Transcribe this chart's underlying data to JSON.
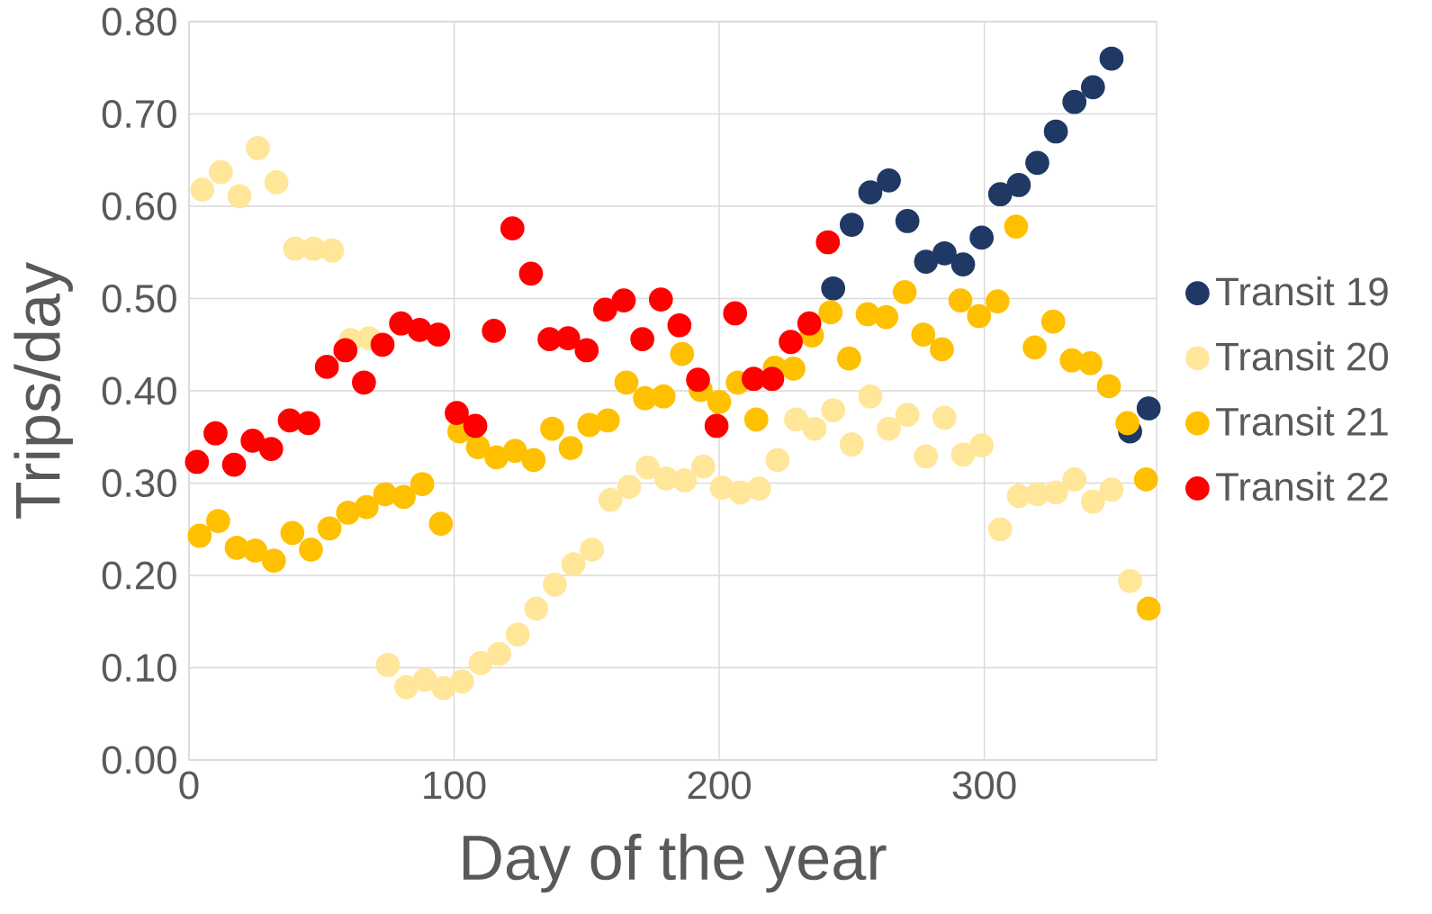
{
  "chart_data": {
    "type": "scatter",
    "xlabel": "Day of the year",
    "ylabel": "Trips/day",
    "xlim": [
      0,
      365
    ],
    "xticks": [
      0,
      100,
      200,
      300
    ],
    "ylim": [
      0,
      0.8
    ],
    "yticks": [
      {
        "value": 0,
        "label": "0.00"
      },
      {
        "value": 0.1,
        "label": "0.10"
      },
      {
        "value": 0.2,
        "label": "0.20"
      },
      {
        "value": 0.3,
        "label": "0.30"
      },
      {
        "value": 0.4,
        "label": "0.40"
      },
      {
        "value": 0.5,
        "label": "0.50"
      },
      {
        "value": 0.6,
        "label": "0.60"
      },
      {
        "value": 0.7,
        "label": "0.70"
      },
      {
        "value": 0.8,
        "label": "0.80"
      }
    ],
    "grid": true,
    "legend": "right",
    "marker": "circle",
    "series": [
      {
        "name": "Transit 19",
        "color": "#203864",
        "x": [
          243,
          250,
          257,
          264,
          271,
          278,
          285,
          292,
          299,
          306,
          313,
          320,
          327,
          334,
          341,
          348,
          355,
          362
        ],
        "values": [
          0.511,
          0.58,
          0.615,
          0.628,
          0.584,
          0.54,
          0.549,
          0.537,
          0.566,
          0.613,
          0.623,
          0.647,
          0.681,
          0.713,
          0.729,
          0.76,
          0.356,
          0.381
        ]
      },
      {
        "name": "Transit 20",
        "color": "#ffe699",
        "x": [
          5,
          12,
          19,
          26,
          33,
          40,
          47,
          54,
          61,
          68,
          75,
          82,
          89,
          96,
          103,
          110,
          117,
          124,
          131,
          138,
          145,
          152,
          159,
          166,
          173,
          180,
          187,
          194,
          201,
          208,
          215,
          222,
          229,
          236,
          243,
          250,
          257,
          264,
          271,
          278,
          285,
          292,
          299,
          306,
          313,
          320,
          327,
          334,
          341,
          348,
          355
        ],
        "values": [
          0.618,
          0.637,
          0.611,
          0.663,
          0.626,
          0.554,
          0.554,
          0.552,
          0.455,
          0.457,
          0.103,
          0.079,
          0.087,
          0.078,
          0.085,
          0.105,
          0.115,
          0.136,
          0.164,
          0.19,
          0.212,
          0.228,
          0.282,
          0.296,
          0.317,
          0.305,
          0.303,
          0.318,
          0.295,
          0.29,
          0.294,
          0.325,
          0.369,
          0.359,
          0.379,
          0.342,
          0.394,
          0.359,
          0.374,
          0.329,
          0.371,
          0.331,
          0.341,
          0.25,
          0.286,
          0.288,
          0.29,
          0.304,
          0.28,
          0.293,
          0.194
        ]
      },
      {
        "name": "Transit 21",
        "color": "#ffc000",
        "x": [
          4,
          11,
          18,
          25,
          32,
          39,
          46,
          53,
          60,
          67,
          74,
          81,
          88,
          95,
          102,
          109,
          116,
          123,
          130,
          137,
          144,
          151,
          158,
          165,
          172,
          179,
          186,
          193,
          200,
          207,
          214,
          221,
          228,
          235,
          242,
          249,
          256,
          263,
          270,
          277,
          284,
          291,
          298,
          305,
          312,
          319,
          326,
          333,
          340,
          347,
          354,
          361,
          362
        ],
        "values": [
          0.243,
          0.259,
          0.23,
          0.227,
          0.216,
          0.246,
          0.228,
          0.251,
          0.268,
          0.274,
          0.288,
          0.285,
          0.299,
          0.256,
          0.356,
          0.339,
          0.328,
          0.335,
          0.325,
          0.359,
          0.338,
          0.363,
          0.368,
          0.409,
          0.392,
          0.394,
          0.44,
          0.401,
          0.388,
          0.409,
          0.369,
          0.425,
          0.424,
          0.46,
          0.485,
          0.435,
          0.483,
          0.48,
          0.507,
          0.461,
          0.445,
          0.498,
          0.481,
          0.497,
          0.578,
          0.447,
          0.475,
          0.433,
          0.43,
          0.405,
          0.365,
          0.304,
          0.164
        ]
      },
      {
        "name": "Transit 22",
        "color": "#ff0000",
        "x": [
          3,
          10,
          17,
          24,
          31,
          38,
          45,
          52,
          59,
          66,
          73,
          80,
          87,
          94,
          101,
          108,
          115,
          122,
          129,
          136,
          143,
          150,
          157,
          164,
          171,
          178,
          185,
          192,
          199,
          206,
          213,
          220,
          227,
          234,
          241
        ],
        "values": [
          0.323,
          0.354,
          0.32,
          0.346,
          0.337,
          0.368,
          0.365,
          0.426,
          0.444,
          0.409,
          0.45,
          0.473,
          0.466,
          0.461,
          0.376,
          0.362,
          0.465,
          0.576,
          0.527,
          0.456,
          0.457,
          0.444,
          0.488,
          0.498,
          0.456,
          0.499,
          0.471,
          0.412,
          0.362,
          0.484,
          0.413,
          0.413,
          0.453,
          0.473,
          0.561
        ]
      }
    ]
  }
}
